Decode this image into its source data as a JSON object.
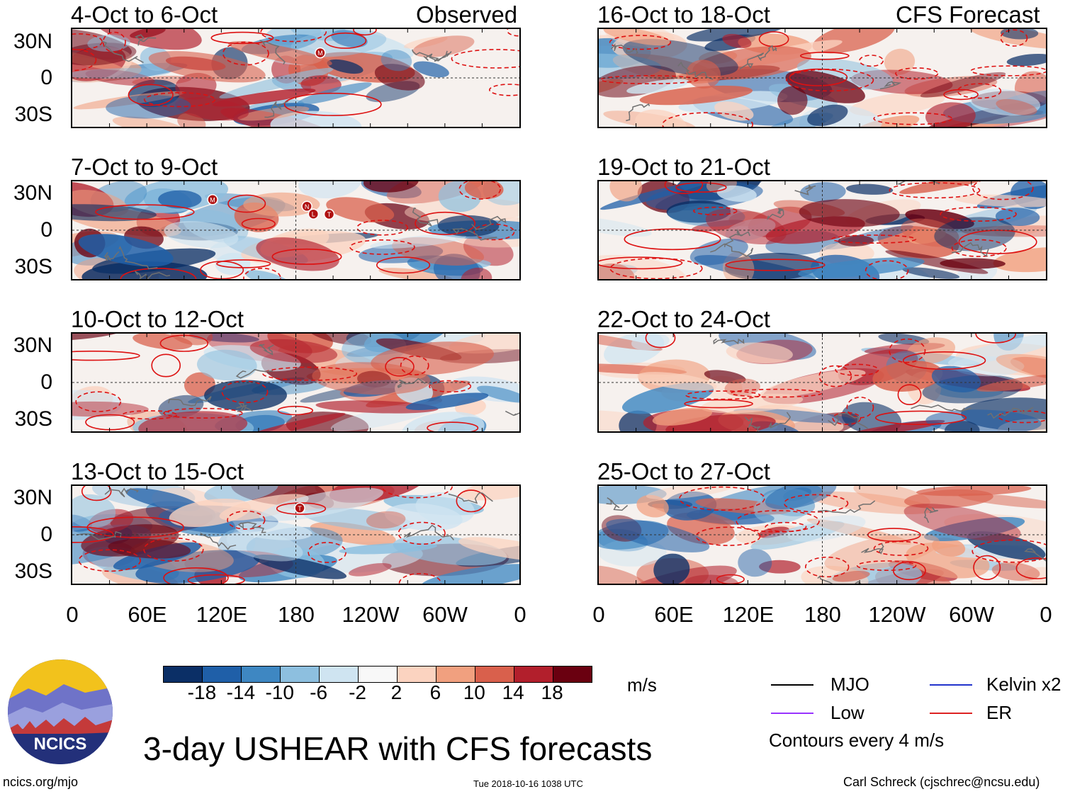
{
  "chart_data": {
    "type": "heatmap",
    "title": "3-day USHEAR with CFS forecasts",
    "units": "m/s",
    "contour_note": "Contours every 4 m/s",
    "y_ticks": [
      "30N",
      "0",
      "30S"
    ],
    "x_ticks": [
      "0",
      "60E",
      "120E",
      "180",
      "120W",
      "60W",
      "0"
    ],
    "columns": [
      {
        "label": "Observed",
        "panels": [
          {
            "period": "4-Oct to 6-Oct",
            "markers": [
              "M"
            ]
          },
          {
            "period": "7-Oct to 9-Oct",
            "markers": [
              "L",
              "T",
              "M",
              "N"
            ]
          },
          {
            "period": "10-Oct to 12-Oct",
            "markers": []
          },
          {
            "period": "13-Oct to 15-Oct",
            "markers": [
              "T"
            ]
          }
        ]
      },
      {
        "label": "CFS Forecast",
        "panels": [
          {
            "period": "16-Oct to 18-Oct",
            "markers": []
          },
          {
            "period": "19-Oct to 21-Oct",
            "markers": []
          },
          {
            "period": "22-Oct to 24-Oct",
            "markers": []
          },
          {
            "period": "25-Oct to 27-Oct",
            "markers": []
          }
        ]
      }
    ],
    "colorbar": {
      "tick_labels": [
        "-18",
        "-14",
        "-10",
        "-6",
        "-2",
        "2",
        "6",
        "10",
        "14",
        "18"
      ],
      "colors": [
        "#0b2f66",
        "#1f5fa8",
        "#3e87c2",
        "#8dbfdf",
        "#cfe4f1",
        "#f8f8f8",
        "#fbd3c0",
        "#f1a07f",
        "#d9604c",
        "#b21f2c",
        "#6a0010"
      ]
    },
    "legend": [
      {
        "name": "MJO",
        "color": "#000000"
      },
      {
        "name": "Kelvin x2",
        "color": "#2233cc"
      },
      {
        "name": "Low",
        "color": "#9933ff"
      },
      {
        "name": "ER",
        "color": "#dd2222"
      }
    ]
  },
  "footer": {
    "logo_text": "NCICS",
    "website": "ncics.org/mjo",
    "timestamp": "Tue 2018-10-16 1038 UTC",
    "author": "Carl Schreck (cjschrec@ncsu.edu)"
  }
}
